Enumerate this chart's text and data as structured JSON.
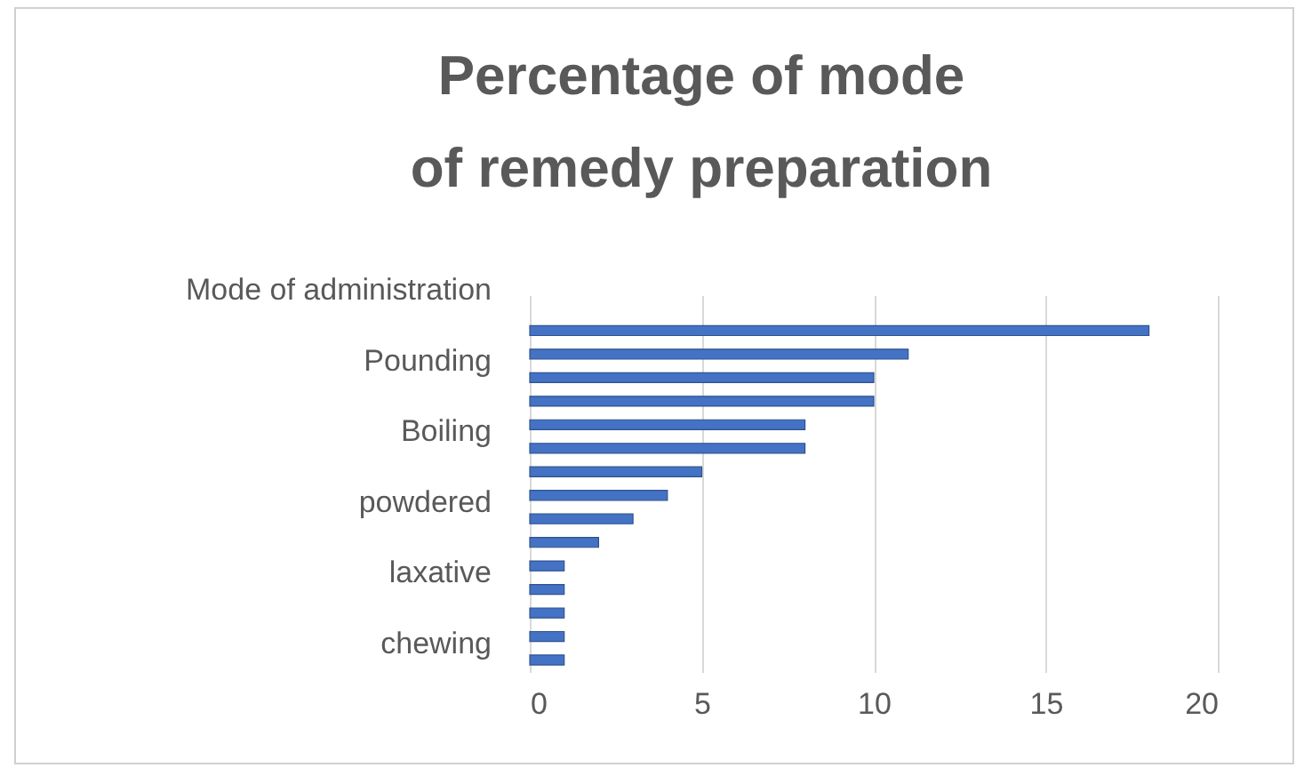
{
  "chart_data": {
    "type": "bar",
    "orientation": "horizontal",
    "title": "Percentage of mode of remedy preparation",
    "categories": [
      "Mode of administration",
      null,
      null,
      "Pounding",
      null,
      null,
      "Boiling ",
      null,
      null,
      "powdered",
      null,
      null,
      "laxative",
      null,
      null,
      "chewing"
    ],
    "values": [
      null,
      18,
      11,
      10,
      10,
      8,
      8,
      5,
      4,
      3,
      2,
      1,
      1,
      1,
      1,
      1
    ],
    "color": "#4472c4",
    "xlim": [
      0,
      20
    ],
    "xticks": [
      0,
      5,
      10,
      15,
      20
    ],
    "grid": "x"
  }
}
